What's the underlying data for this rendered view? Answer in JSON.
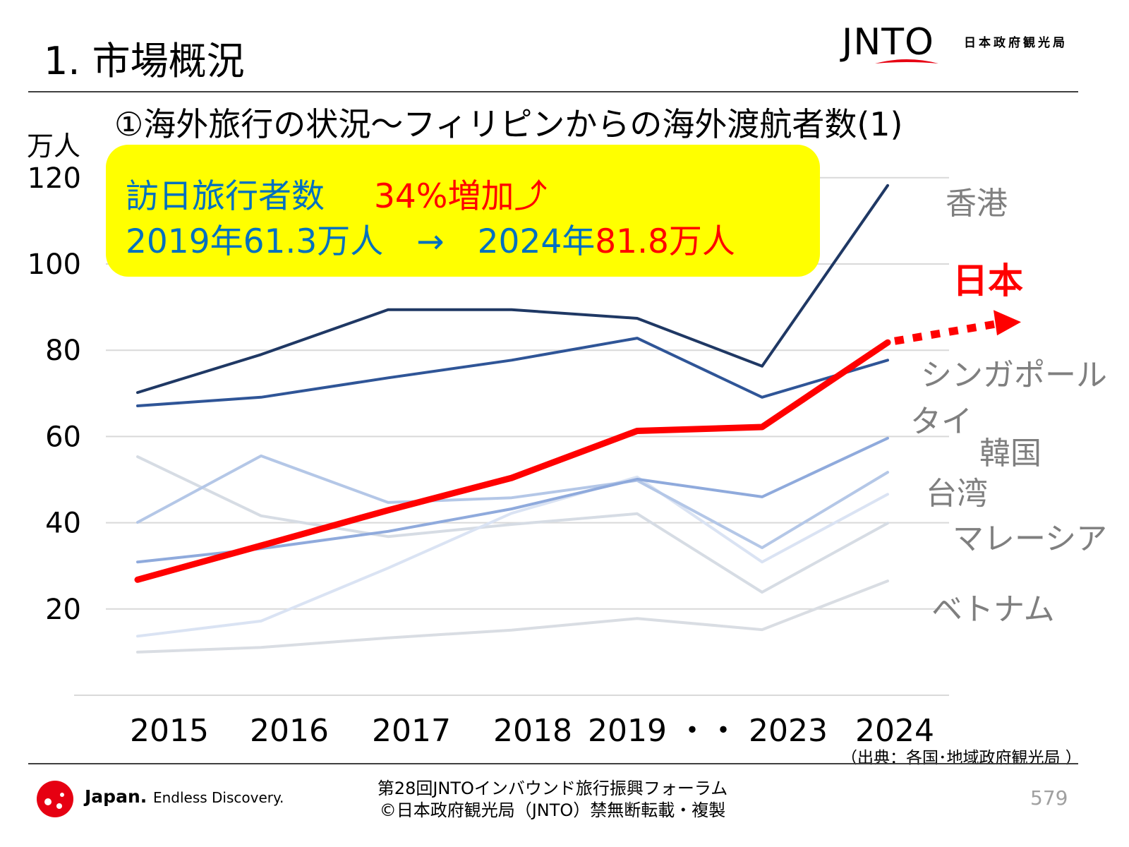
{
  "header": {
    "title": "1. 市場概況",
    "logo_text": "JNTO",
    "logo_subtext": "日本政府観光局"
  },
  "callout": {
    "line1_label": "訪日旅行者数",
    "line1_highlight": "34%増加⤴",
    "line2_a": "2019年61.3万人　→　2024年",
    "line2_b": "81.8万人"
  },
  "chart_data": {
    "type": "line",
    "title": "①海外旅行の状況～フィリピンからの海外渡航者数(1)",
    "ylabel": "万人",
    "xlabel": "",
    "ylim": [
      0,
      120
    ],
    "yticks": [
      "20",
      "40",
      "60",
      "80",
      "100",
      "120"
    ],
    "x": [
      "2015",
      "2016",
      "2017",
      "2018",
      "2019",
      "2023",
      "2024"
    ],
    "xtick_labels": [
      "2015",
      "2016",
      "2017",
      "2018",
      "2019 ・・ 2023",
      "2024"
    ],
    "grid": true,
    "series": [
      {
        "name": "香港",
        "color": "#1f3864",
        "values": [
          70.2,
          79.0,
          89.4,
          89.4,
          87.4,
          76.3,
          118.2
        ]
      },
      {
        "name": "シンガポール",
        "color": "#2f5597",
        "values": [
          67.1,
          69.1,
          73.6,
          77.7,
          82.8,
          69.1,
          77.7
        ]
      },
      {
        "name": "タイ",
        "color": "#8faadc",
        "values": [
          30.9,
          34.0,
          38.0,
          43.2,
          50.1,
          46.0,
          59.6
        ]
      },
      {
        "name": "韓国",
        "color": "#b4c7e7",
        "values": [
          40.1,
          55.5,
          44.7,
          45.8,
          49.8,
          34.2,
          51.7
        ]
      },
      {
        "name": "台湾",
        "color": "#dae3f3",
        "values": [
          13.7,
          17.2,
          29.5,
          42.2,
          50.6,
          30.9,
          46.6
        ]
      },
      {
        "name": "マレーシア",
        "color": "#d6dce4",
        "values": [
          55.3,
          41.6,
          36.8,
          39.6,
          42.1,
          23.9,
          39.9
        ]
      },
      {
        "name": "ベトナム",
        "color": "#d9dde3",
        "values": [
          10.0,
          11.1,
          13.3,
          15.1,
          17.8,
          15.2,
          26.5
        ]
      },
      {
        "name": "日本",
        "color": "#ff0000",
        "values": [
          26.8,
          34.7,
          42.9,
          50.4,
          61.3,
          62.2,
          81.8
        ],
        "emphasis": true
      }
    ],
    "source": "（出典：各国･地域政府観光局 ）"
  },
  "footer": {
    "brand": "Japan.",
    "brand_tagline": "Endless Discovery.",
    "line1": "第28回JNTOインバウンド旅行振興フォーラム",
    "line2": "©日本政府観光局（JNTO）禁無断転載・複製",
    "page": "579"
  }
}
